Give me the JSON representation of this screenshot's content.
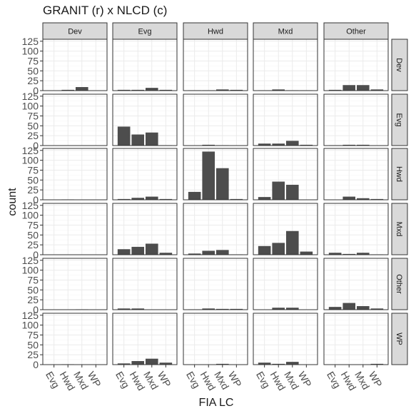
{
  "chart_data": {
    "type": "bar",
    "title": "GRANIT (r) x NLCD (c)",
    "xlabel": "FIA LC",
    "ylabel": "count",
    "categories": [
      "Evg",
      "Hwd",
      "Mxd",
      "WP"
    ],
    "col_facets": [
      "Dev",
      "Evg",
      "Hwd",
      "Mxd",
      "Other"
    ],
    "row_facets": [
      "Dev",
      "Evg",
      "Hwd",
      "Mxd",
      "Other",
      "WP"
    ],
    "yticks": [
      0,
      25,
      50,
      75,
      100,
      125
    ],
    "ylim": [
      0,
      130
    ],
    "grid": true,
    "colors": {
      "bar": "#4d4d4d",
      "panel_border": "#333333",
      "grid_major": "#ebebeb",
      "grid_minor": "#f5f5f5",
      "strip_fill": "#d9d9d9"
    },
    "panels": [
      [
        [
          0,
          2,
          9,
          0
        ],
        [
          2,
          2,
          7,
          2
        ],
        [
          1,
          1,
          3,
          2
        ],
        [
          1,
          3,
          1,
          1
        ],
        [
          2,
          14,
          14,
          3
        ]
      ],
      [
        [
          0,
          0,
          0,
          0
        ],
        [
          48,
          28,
          33,
          1
        ],
        [
          0,
          2,
          1,
          0
        ],
        [
          5,
          5,
          12,
          2
        ],
        [
          1,
          2,
          2,
          0
        ]
      ],
      [
        [
          0,
          1,
          0,
          0
        ],
        [
          2,
          5,
          8,
          2
        ],
        [
          20,
          122,
          80,
          2
        ],
        [
          7,
          46,
          38,
          0
        ],
        [
          0,
          8,
          4,
          2
        ]
      ],
      [
        [
          0,
          0,
          0,
          0
        ],
        [
          14,
          20,
          28,
          5
        ],
        [
          3,
          10,
          12,
          1
        ],
        [
          22,
          30,
          60,
          8
        ],
        [
          5,
          2,
          5,
          1
        ]
      ],
      [
        [
          0,
          0,
          1,
          0
        ],
        [
          3,
          3,
          0,
          0
        ],
        [
          1,
          3,
          2,
          2
        ],
        [
          0,
          5,
          5,
          0
        ],
        [
          7,
          17,
          9,
          3
        ]
      ],
      [
        [
          0,
          1,
          0,
          0
        ],
        [
          3,
          9,
          15,
          5
        ],
        [
          0,
          0,
          2,
          0
        ],
        [
          5,
          2,
          7,
          0
        ],
        [
          0,
          0,
          0,
          2
        ]
      ]
    ]
  }
}
